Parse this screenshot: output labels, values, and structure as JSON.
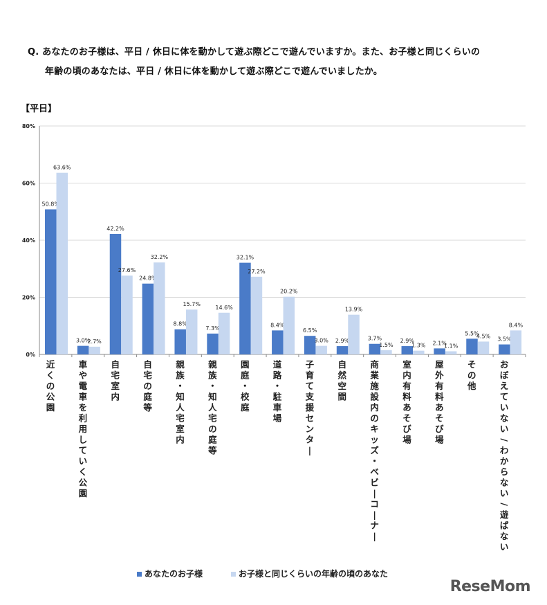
{
  "question": {
    "line1": "Q. あなたのお子様は、平日 / 休日に体を動かして遊ぶ際どこで遊んでいますか。また、お子様と同じくらいの",
    "line2": "年齢の頃のあなたは、平日 / 休日に体を動かして遊ぶ際どこで遊んでいましたか。"
  },
  "section_label": "【平日】",
  "watermark": "ReseMom",
  "colors": {
    "series1": "#4a7bc8",
    "series2": "#c6d7f0",
    "grid": "#d9d9d9",
    "axis": "#888888"
  },
  "chart_data": {
    "type": "bar",
    "ylim": [
      0,
      80
    ],
    "yticks": [
      "0%",
      "20%",
      "40%",
      "60%",
      "80%"
    ],
    "ytick_values": [
      0,
      20,
      40,
      60,
      80
    ],
    "grid": true,
    "legend_position": "bottom",
    "categories": [
      "近くの公園",
      "車や電車を利用していく公園",
      "自宅室内",
      "自宅の庭等",
      "親族・知人宅室内",
      "親族・知人宅の庭等",
      "園庭・校庭",
      "道路・駐車場",
      "子育て支援センター",
      "自然空間",
      "商業施設内のキッズ・ベビーコーナー",
      "室内有料あそび場",
      "屋外有料あそび場",
      "その他",
      "おぼえていない/わからない/遊ばない"
    ],
    "series": [
      {
        "name": "あなたのお子様",
        "values": [
          50.8,
          3.0,
          42.2,
          24.8,
          8.8,
          7.3,
          32.1,
          8.4,
          6.5,
          2.9,
          3.7,
          2.9,
          2.1,
          5.5,
          3.5
        ],
        "labels": [
          "50.8%",
          "3.0%",
          "42.2%",
          "24.8%",
          "8.8%",
          "7.3%",
          "32.1%",
          "8.4%",
          "6.5%",
          "2.9%",
          "3.7%",
          "2.9%",
          "2.1%",
          "5.5%",
          "3.5%"
        ]
      },
      {
        "name": "お子様と同じくらいの年齢の頃のあなた",
        "values": [
          63.6,
          2.7,
          27.6,
          32.2,
          15.7,
          14.6,
          27.2,
          20.2,
          3.0,
          13.9,
          1.5,
          1.3,
          1.1,
          4.5,
          8.4
        ],
        "labels": [
          "63.6%",
          "2.7%",
          "27.6%",
          "32.2%",
          "15.7%",
          "14.6%",
          "27.2%",
          "20.2%",
          "3.0%",
          "13.9%",
          "1.5%",
          "1.3%",
          "1.1%",
          "4.5%",
          "8.4%"
        ]
      }
    ]
  }
}
